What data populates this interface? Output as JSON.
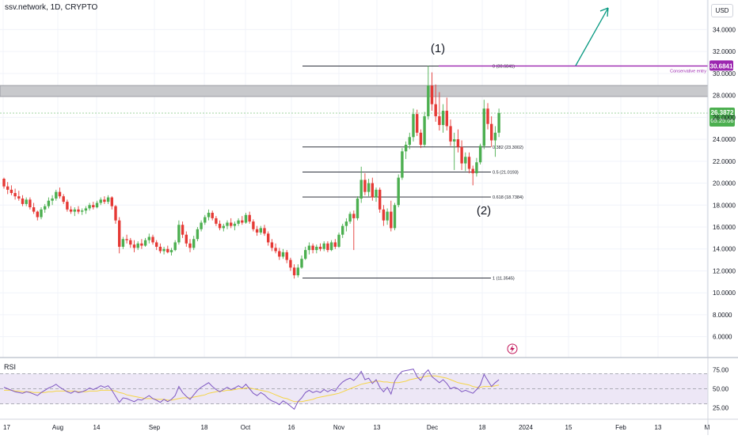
{
  "header": {
    "symbol": "ssv.network",
    "interval": "1D",
    "exchange": "CRYPTO",
    "currency": "USD"
  },
  "chart_data": {
    "type": "candlestick",
    "price_axis": {
      "ticks": [
        "34.0000",
        "32.0000",
        "30.0000",
        "28.0000",
        "26.0000",
        "24.0000",
        "22.0000",
        "20.0000",
        "18.0000",
        "16.0000",
        "14.0000",
        "12.0000",
        "10.0000",
        "8.0000",
        "6.0000"
      ],
      "range": [
        4.1,
        36.7
      ]
    },
    "time_axis": {
      "ticks": [
        "17",
        "Aug",
        "14",
        "Sep",
        "18",
        "Oct",
        "16",
        "Nov",
        "13",
        "Dec",
        "18",
        "2024",
        "15",
        "Feb",
        "13",
        "M"
      ]
    },
    "price_labels": {
      "entry": "30.6841",
      "last": "26.3872",
      "countdown": "05:25:06"
    },
    "entry_line": {
      "value": 30.6841,
      "label": "Conservative entry",
      "color": "#9c27b0"
    },
    "resistance_zone": {
      "low": 27.9,
      "high": 28.9
    },
    "current_price": 26.3872,
    "fib_levels": [
      {
        "ratio": 0,
        "value": 30.6841,
        "label": "0 (30.6841)"
      },
      {
        "ratio": 0.382,
        "value": 23.3002,
        "label": "0.382 (23.3002)"
      },
      {
        "ratio": 0.5,
        "value": 21.0193,
        "label": "0.5 (21.0193)"
      },
      {
        "ratio": 0.618,
        "value": 18.7384,
        "label": "0.618 (18.7384)"
      },
      {
        "ratio": 1,
        "value": 11.3545,
        "label": "1 (11.3545)"
      }
    ],
    "wave_labels": {
      "wave1": "(1)",
      "wave2": "(2)"
    },
    "colors": {
      "up": "#4caf50",
      "down": "#e53935",
      "fib": "#131722",
      "arrow": "#089981",
      "rsi": "#7e57c2",
      "rsi_ma": "#f5d547",
      "rsi_band": "#ede7f6",
      "grid": "#f0f3fa"
    },
    "candles": [
      [
        20.4,
        20.5,
        19.5,
        19.7
      ],
      [
        19.7,
        20.1,
        19.0,
        19.4
      ],
      [
        19.4,
        19.8,
        18.9,
        19.1
      ],
      [
        19.1,
        19.5,
        18.5,
        18.8
      ],
      [
        18.8,
        19.3,
        18.4,
        18.6
      ],
      [
        18.6,
        18.9,
        17.9,
        18.1
      ],
      [
        18.1,
        18.7,
        17.9,
        18.5
      ],
      [
        18.5,
        18.7,
        17.6,
        17.8
      ],
      [
        17.8,
        18.2,
        17.2,
        17.4
      ],
      [
        17.4,
        17.5,
        16.6,
        16.9
      ],
      [
        16.9,
        17.8,
        16.7,
        17.6
      ],
      [
        17.6,
        18.1,
        17.3,
        17.9
      ],
      [
        17.9,
        18.7,
        17.7,
        18.4
      ],
      [
        18.4,
        18.9,
        18.0,
        18.6
      ],
      [
        18.6,
        19.4,
        18.4,
        19.2
      ],
      [
        19.2,
        19.6,
        18.6,
        18.8
      ],
      [
        18.8,
        19.0,
        18.1,
        18.3
      ],
      [
        18.3,
        18.5,
        17.4,
        17.6
      ],
      [
        17.6,
        17.9,
        17.2,
        17.4
      ],
      [
        17.4,
        17.8,
        17.0,
        17.6
      ],
      [
        17.6,
        17.9,
        17.2,
        17.4
      ],
      [
        17.4,
        17.7,
        17.1,
        17.5
      ],
      [
        17.5,
        17.9,
        17.2,
        17.7
      ],
      [
        17.7,
        18.2,
        17.5,
        18.0
      ],
      [
        18.0,
        18.3,
        17.6,
        17.8
      ],
      [
        17.8,
        18.4,
        17.7,
        18.2
      ],
      [
        18.2,
        18.7,
        18.0,
        18.5
      ],
      [
        18.5,
        18.8,
        18.1,
        18.3
      ],
      [
        18.3,
        18.9,
        18.1,
        18.7
      ],
      [
        18.7,
        18.8,
        17.6,
        17.9
      ],
      [
        17.9,
        18.0,
        16.3,
        16.6
      ],
      [
        16.6,
        16.9,
        13.6,
        14.2
      ],
      [
        14.2,
        15.1,
        14.0,
        14.9
      ],
      [
        14.9,
        15.3,
        14.5,
        14.8
      ],
      [
        14.8,
        15.0,
        14.1,
        14.4
      ],
      [
        14.4,
        14.8,
        13.7,
        14.1
      ],
      [
        14.1,
        14.7,
        13.9,
        14.5
      ],
      [
        14.5,
        14.9,
        14.0,
        14.3
      ],
      [
        14.3,
        15.0,
        14.2,
        14.8
      ],
      [
        14.8,
        15.4,
        14.5,
        15.1
      ],
      [
        15.1,
        15.3,
        14.4,
        14.6
      ],
      [
        14.6,
        14.8,
        13.9,
        14.2
      ],
      [
        14.2,
        14.5,
        13.6,
        13.8
      ],
      [
        13.8,
        14.2,
        13.5,
        14.0
      ],
      [
        14.0,
        14.3,
        13.6,
        13.7
      ],
      [
        13.7,
        14.1,
        13.4,
        13.9
      ],
      [
        13.9,
        14.8,
        13.8,
        14.6
      ],
      [
        14.6,
        16.6,
        14.4,
        16.2
      ],
      [
        16.2,
        16.5,
        15.0,
        15.3
      ],
      [
        15.3,
        15.6,
        14.2,
        14.5
      ],
      [
        14.5,
        14.9,
        13.7,
        14.1
      ],
      [
        14.1,
        15.2,
        13.9,
        14.9
      ],
      [
        14.9,
        16.0,
        14.7,
        15.8
      ],
      [
        15.8,
        16.6,
        15.6,
        16.4
      ],
      [
        16.4,
        17.1,
        16.2,
        16.9
      ],
      [
        16.9,
        17.6,
        16.6,
        17.3
      ],
      [
        17.3,
        17.5,
        16.6,
        16.8
      ],
      [
        16.8,
        17.0,
        16.1,
        16.3
      ],
      [
        16.3,
        16.6,
        15.7,
        15.9
      ],
      [
        15.9,
        16.3,
        15.6,
        16.1
      ],
      [
        16.1,
        16.6,
        15.8,
        16.4
      ],
      [
        16.4,
        16.8,
        15.9,
        16.1
      ],
      [
        16.1,
        16.5,
        15.7,
        16.3
      ],
      [
        16.3,
        16.8,
        16.1,
        16.6
      ],
      [
        16.6,
        17.0,
        16.2,
        16.4
      ],
      [
        16.4,
        17.3,
        16.3,
        17.1
      ],
      [
        17.1,
        17.4,
        16.3,
        16.5
      ],
      [
        16.5,
        16.7,
        15.6,
        15.8
      ],
      [
        15.8,
        16.1,
        15.2,
        15.5
      ],
      [
        15.5,
        16.1,
        15.3,
        15.9
      ],
      [
        15.9,
        16.2,
        15.2,
        15.4
      ],
      [
        15.4,
        15.6,
        14.3,
        14.6
      ],
      [
        14.6,
        14.9,
        13.8,
        14.1
      ],
      [
        14.1,
        14.5,
        13.6,
        13.8
      ],
      [
        13.8,
        14.1,
        13.0,
        13.3
      ],
      [
        13.3,
        14.0,
        13.1,
        13.7
      ],
      [
        13.7,
        13.9,
        12.7,
        13.0
      ],
      [
        13.0,
        13.2,
        12.0,
        12.3
      ],
      [
        12.3,
        12.6,
        11.3,
        11.6
      ],
      [
        11.6,
        12.6,
        11.4,
        12.3
      ],
      [
        12.3,
        13.4,
        12.2,
        13.1
      ],
      [
        13.1,
        14.2,
        13.0,
        13.9
      ],
      [
        13.9,
        14.6,
        13.5,
        14.3
      ],
      [
        14.3,
        14.5,
        13.6,
        13.9
      ],
      [
        13.9,
        14.4,
        13.6,
        14.2
      ],
      [
        14.2,
        14.5,
        13.8,
        14.0
      ],
      [
        14.0,
        14.7,
        13.8,
        14.5
      ],
      [
        14.5,
        14.7,
        13.7,
        13.9
      ],
      [
        13.9,
        14.8,
        13.8,
        14.6
      ],
      [
        14.6,
        14.9,
        14.0,
        14.2
      ],
      [
        14.2,
        15.5,
        14.1,
        15.3
      ],
      [
        15.3,
        16.3,
        15.0,
        16.1
      ],
      [
        16.1,
        16.8,
        15.6,
        16.5
      ],
      [
        16.5,
        17.4,
        16.3,
        17.2
      ],
      [
        17.2,
        17.5,
        13.9,
        16.8
      ],
      [
        16.8,
        18.8,
        16.6,
        18.6
      ],
      [
        18.6,
        21.5,
        18.2,
        20.3
      ],
      [
        20.3,
        20.9,
        18.9,
        19.2
      ],
      [
        19.2,
        20.4,
        18.8,
        20.0
      ],
      [
        20.0,
        20.5,
        18.4,
        18.7
      ],
      [
        18.7,
        19.6,
        18.3,
        19.4
      ],
      [
        19.4,
        19.6,
        17.3,
        17.6
      ],
      [
        17.6,
        18.0,
        16.1,
        16.6
      ],
      [
        16.6,
        17.7,
        16.2,
        17.4
      ],
      [
        17.4,
        18.4,
        15.6,
        15.9
      ],
      [
        15.9,
        18.2,
        15.7,
        18.0
      ],
      [
        18.0,
        20.8,
        17.8,
        20.5
      ],
      [
        20.5,
        23.2,
        20.3,
        22.9
      ],
      [
        22.9,
        23.8,
        22.2,
        23.5
      ],
      [
        23.5,
        24.6,
        23.1,
        24.2
      ],
      [
        24.2,
        26.8,
        23.8,
        26.3
      ],
      [
        26.3,
        26.7,
        24.3,
        24.6
      ],
      [
        24.6,
        24.9,
        23.2,
        23.5
      ],
      [
        23.5,
        26.5,
        23.3,
        26.1
      ],
      [
        26.1,
        30.7,
        25.8,
        28.9
      ],
      [
        28.9,
        30.1,
        26.6,
        27.2
      ],
      [
        27.2,
        29.0,
        25.6,
        26.1
      ],
      [
        26.1,
        28.3,
        24.8,
        25.3
      ],
      [
        25.3,
        27.2,
        24.6,
        26.6
      ],
      [
        26.6,
        27.8,
        24.8,
        25.2
      ],
      [
        25.2,
        25.8,
        23.4,
        23.8
      ],
      [
        23.8,
        24.6,
        21.2,
        24.0
      ],
      [
        24.0,
        24.9,
        22.8,
        23.3
      ],
      [
        23.3,
        23.9,
        21.2,
        21.8
      ],
      [
        21.8,
        22.8,
        21.1,
        22.4
      ],
      [
        22.4,
        22.8,
        20.9,
        21.3
      ],
      [
        21.3,
        21.6,
        19.8,
        20.9
      ],
      [
        20.9,
        22.3,
        20.6,
        21.9
      ],
      [
        21.9,
        23.6,
        21.7,
        23.4
      ],
      [
        23.4,
        27.6,
        23.1,
        26.8
      ],
      [
        26.8,
        27.3,
        24.9,
        25.4
      ],
      [
        25.4,
        26.1,
        23.3,
        23.9
      ],
      [
        23.9,
        25.2,
        22.4,
        24.6
      ],
      [
        24.6,
        26.8,
        24.2,
        26.4
      ]
    ],
    "rsi": {
      "label": "RSI",
      "ticks": [
        "75.00",
        "50.00",
        "25.00"
      ],
      "overbought": 70,
      "middle": 50,
      "oversold": 30,
      "values": [
        52,
        50,
        48,
        46,
        45,
        44,
        46,
        45,
        43,
        41,
        45,
        48,
        51,
        53,
        56,
        52,
        49,
        46,
        44,
        47,
        45,
        46,
        48,
        51,
        49,
        51,
        54,
        52,
        54,
        48,
        40,
        32,
        38,
        37,
        35,
        33,
        36,
        35,
        38,
        41,
        37,
        35,
        32,
        36,
        33,
        36,
        41,
        53,
        45,
        40,
        36,
        42,
        48,
        52,
        55,
        58,
        53,
        49,
        46,
        49,
        52,
        49,
        51,
        54,
        51,
        56,
        50,
        44,
        41,
        45,
        42,
        37,
        34,
        32,
        29,
        34,
        31,
        27,
        23,
        33,
        38,
        45,
        48,
        45,
        47,
        45,
        49,
        46,
        49,
        47,
        54,
        59,
        62,
        64,
        61,
        66,
        73,
        62,
        64,
        57,
        62,
        52,
        46,
        52,
        43,
        60,
        68,
        73,
        74,
        75,
        76,
        66,
        61,
        70,
        75,
        66,
        62,
        58,
        62,
        57,
        50,
        52,
        50,
        46,
        48,
        46,
        44,
        49,
        55,
        69,
        61,
        53,
        58,
        62
      ],
      "ma_values": [
        48,
        48,
        48,
        47,
        47,
        46,
        46,
        46,
        45,
        45,
        45,
        45,
        46,
        46,
        47,
        47,
        47,
        47,
        47,
        47,
        46,
        46,
        46,
        47,
        47,
        47,
        48,
        48,
        48,
        48,
        47,
        45,
        44,
        42,
        41,
        40,
        39,
        38,
        37,
        37,
        37,
        36,
        36,
        36,
        35,
        35,
        36,
        37,
        38,
        38,
        38,
        39,
        40,
        41,
        42,
        44,
        45,
        46,
        47,
        47,
        48,
        48,
        49,
        50,
        50,
        51,
        51,
        50,
        49,
        48,
        47,
        46,
        44,
        42,
        40,
        38,
        37,
        35,
        33,
        33,
        33,
        34,
        35,
        36,
        38,
        39,
        40,
        41,
        42,
        43,
        44,
        46,
        48,
        50,
        52,
        54,
        56,
        57,
        58,
        59,
        60,
        60,
        59,
        59,
        58,
        58,
        58,
        59,
        60,
        62,
        63,
        64,
        65,
        66,
        67,
        67,
        67,
        66,
        65,
        64,
        62,
        60,
        58,
        57,
        56,
        55,
        53,
        52,
        52,
        53,
        53,
        53,
        54,
        55
      ],
      "last_ma_segment_note": ""
    }
  },
  "icons": {
    "flash": "lightning-icon"
  }
}
